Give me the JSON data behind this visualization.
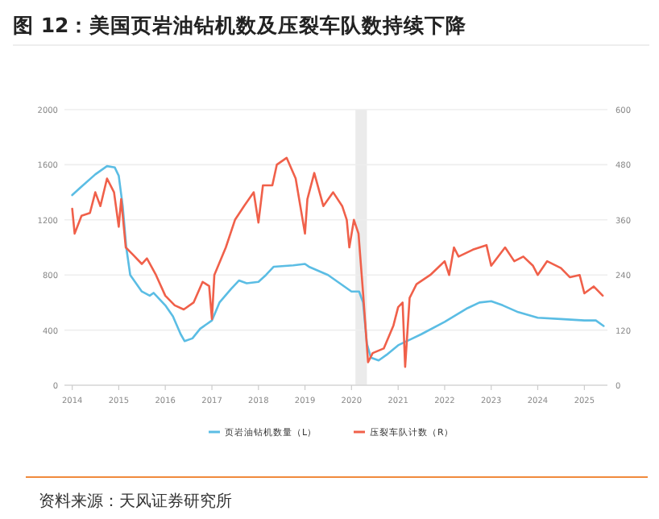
{
  "chart_data": {
    "type": "line",
    "title": "图 12：美国页岩油钻机数及压裂车队数持续下降",
    "annotations": [
      "资料来源：天风证券研究所"
    ],
    "xlim": [
      "2013-11",
      "2025-07"
    ],
    "xticks": [
      "2014",
      "2015",
      "2016",
      "2017",
      "2018",
      "2019",
      "2020",
      "2021",
      "2022",
      "2023",
      "2024",
      "2025"
    ],
    "ylim": [
      0,
      2000
    ],
    "yticks": [
      0,
      400,
      800,
      1200,
      1600,
      2000
    ],
    "y2lim": [
      0,
      600
    ],
    "y2ticks": [
      0,
      120,
      240,
      360,
      480,
      600
    ],
    "grid": "y",
    "legend": "bottom",
    "line_style": "solid",
    "bands": [
      {
        "axis": "x",
        "from": "2020-02",
        "to": "2020-05",
        "color": "#ebebeb"
      }
    ],
    "series": [
      {
        "name": "页岩油钻机数量（L）",
        "color": "#5bbde4",
        "axis": "y",
        "x": [
          "2014-01",
          "2014-03",
          "2014-07",
          "2014-10",
          "2014-12",
          "2015-01",
          "2015-02",
          "2015-03",
          "2015-04",
          "2015-07",
          "2015-09",
          "2015-10",
          "2016-01",
          "2016-03",
          "2016-05",
          "2016-06",
          "2016-08",
          "2016-10",
          "2017-01",
          "2017-03",
          "2017-06",
          "2017-08",
          "2017-10",
          "2018-01",
          "2018-03",
          "2018-05",
          "2018-10",
          "2019-01",
          "2019-02",
          "2019-07",
          "2019-10",
          "2020-01",
          "2020-03",
          "2020-04",
          "2020-05",
          "2020-06",
          "2020-08",
          "2020-10",
          "2021-01",
          "2021-07",
          "2022-01",
          "2022-07",
          "2022-10",
          "2023-01",
          "2023-04",
          "2023-08",
          "2024-01",
          "2024-07",
          "2025-01",
          "2025-04",
          "2025-06"
        ],
        "values": [
          1380,
          1430,
          1530,
          1590,
          1580,
          1520,
          1300,
          1000,
          800,
          680,
          650,
          670,
          580,
          500,
          370,
          320,
          340,
          410,
          470,
          600,
          700,
          760,
          740,
          750,
          800,
          860,
          870,
          880,
          860,
          800,
          740,
          680,
          680,
          600,
          300,
          200,
          180,
          220,
          290,
          370,
          460,
          560,
          600,
          610,
          580,
          530,
          490,
          480,
          470,
          470,
          430
        ]
      },
      {
        "name": "压裂车队计数（R）",
        "color": "#f0604a",
        "axis": "y2",
        "x": [
          "2014-01-01",
          "2014-01-20",
          "2014-03-15",
          "2014-05-20",
          "2014-07-01",
          "2014-08-10",
          "2014-10-01",
          "2014-11-25",
          "2015-01-01",
          "2015-01-20",
          "2015-02-25",
          "2015-04-20",
          "2015-07-01",
          "2015-08-10",
          "2015-10-20",
          "2016-01-01",
          "2016-03-15",
          "2016-05-25",
          "2016-08-10",
          "2016-10-20",
          "2016-12-10",
          "2017-01-01",
          "2017-01-20",
          "2017-04-20",
          "2017-07-01",
          "2017-09-10",
          "2017-11-25",
          "2018-01-01",
          "2018-02-05",
          "2018-04-20",
          "2018-05-25",
          "2018-08-10",
          "2018-10-20",
          "2019-01-01",
          "2019-01-20",
          "2019-03-15",
          "2019-05-25",
          "2019-08-10",
          "2019-10-20",
          "2019-11-25",
          "2019-12-15",
          "2020-01-20",
          "2020-02-25",
          "2020-04-01",
          "2020-05-10",
          "2020-06-15",
          "2020-09-10",
          "2020-11-25",
          "2021-01-01",
          "2021-02-05",
          "2021-02-25",
          "2021-04-01",
          "2021-05-25",
          "2021-09-10",
          "2021-11-25",
          "2022-01-01",
          "2022-02-05",
          "2022-03-15",
          "2022-04-20",
          "2022-08-10",
          "2022-11-25",
          "2023-01-01",
          "2023-04-20",
          "2023-07-01",
          "2023-09-10",
          "2023-11-25",
          "2024-01-01",
          "2024-03-15",
          "2024-07-01",
          "2024-09-10",
          "2024-11-25",
          "2025-01-01",
          "2025-03-15",
          "2025-05-25"
        ],
        "values": [
          384,
          330,
          369,
          375,
          420,
          390,
          450,
          420,
          345,
          405,
          300,
          285,
          264,
          276,
          240,
          195,
          174,
          165,
          180,
          225,
          216,
          144,
          240,
          300,
          360,
          390,
          420,
          354,
          435,
          435,
          480,
          495,
          450,
          330,
          405,
          462,
          390,
          420,
          390,
          360,
          300,
          360,
          330,
          200,
          50,
          70,
          80,
          130,
          170,
          180,
          40,
          190,
          220,
          240,
          260,
          270,
          240,
          300,
          280,
          295,
          305,
          260,
          300,
          270,
          280,
          260,
          240,
          270,
          255,
          235,
          240,
          200,
          215,
          195
        ]
      }
    ]
  }
}
